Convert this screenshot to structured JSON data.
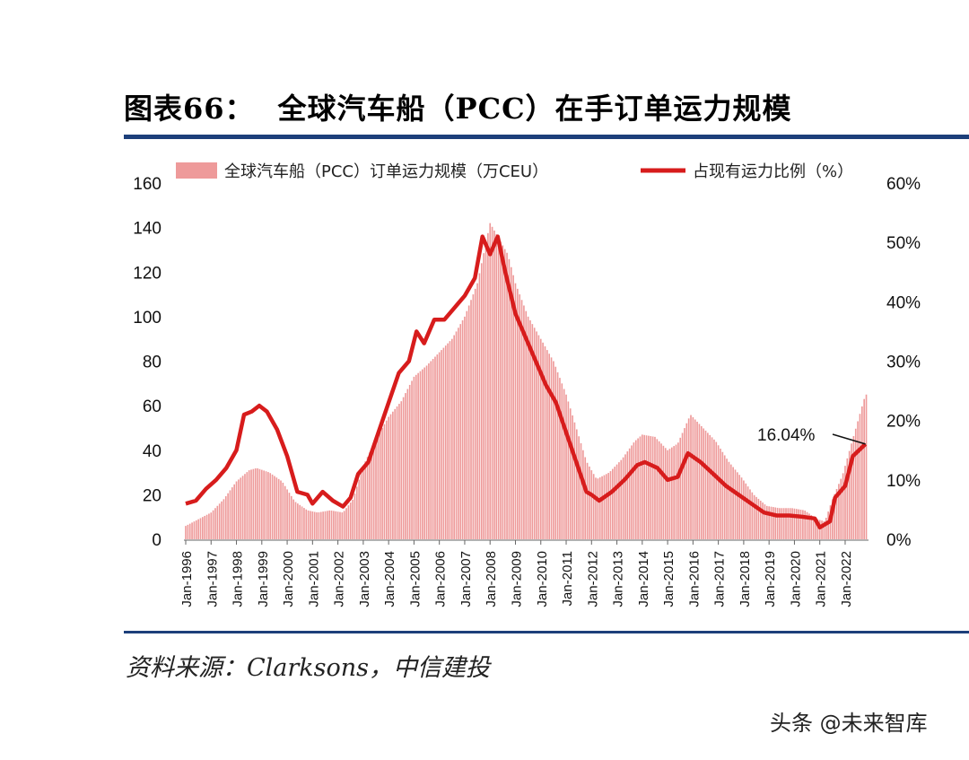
{
  "header": {
    "figure_label": "图表66：",
    "title": "全球汽车船（PCC）在手订单运力规模"
  },
  "footer": {
    "source": "资料来源：Clarksons，中信建投",
    "watermark": "头条 @未来智库"
  },
  "colors": {
    "bar": "#ee9a9a",
    "line": "#d71c1c",
    "rule": "#1c3f7a"
  },
  "chart_data": {
    "type": "bar+line",
    "title": "全球汽车船（PCC）在手订单运力规模",
    "categories": [
      "Jan-1996",
      "Jan-1997",
      "Jan-1998",
      "Jan-1999",
      "Jan-2000",
      "Jan-2001",
      "Jan-2002",
      "Jan-2003",
      "Jan-2004",
      "Jan-2005",
      "Jan-2006",
      "Jan-2007",
      "Jan-2008",
      "Jan-2009",
      "Jan-2010",
      "Jan-2011",
      "Jan-2012",
      "Jan-2013",
      "Jan-2014",
      "Jan-2015",
      "Jan-2016",
      "Jan-2017",
      "Jan-2018",
      "Jan-2019",
      "Jan-2020",
      "Jan-2021",
      "Jan-2022"
    ],
    "y_left": {
      "min": 0,
      "max": 160,
      "ticks": [
        "0",
        "20",
        "40",
        "60",
        "80",
        "100",
        "120",
        "140",
        "160"
      ]
    },
    "y_right": {
      "min": 0,
      "max": 60,
      "ticks": [
        "0%",
        "10%",
        "20%",
        "30%",
        "40%",
        "50%",
        "60%"
      ]
    },
    "legend": {
      "placement": "top"
    },
    "series": [
      {
        "name": "全球汽车船（PCC）订单运力规模（万CEU）",
        "type": "bar",
        "axis": "left",
        "anchors": [
          [
            1996.0,
            6
          ],
          [
            1996.5,
            9
          ],
          [
            1997.0,
            12
          ],
          [
            1997.5,
            18
          ],
          [
            1998.0,
            26
          ],
          [
            1998.5,
            31
          ],
          [
            1998.8,
            32
          ],
          [
            1999.3,
            30
          ],
          [
            1999.8,
            26
          ],
          [
            2000.3,
            17
          ],
          [
            2000.8,
            13
          ],
          [
            2001.2,
            12
          ],
          [
            2001.7,
            13
          ],
          [
            2002.2,
            12
          ],
          [
            2002.6,
            18
          ],
          [
            2003.0,
            33
          ],
          [
            2003.5,
            45
          ],
          [
            2004.0,
            55
          ],
          [
            2004.5,
            62
          ],
          [
            2005.0,
            73
          ],
          [
            2005.5,
            78
          ],
          [
            2006.0,
            84
          ],
          [
            2006.5,
            90
          ],
          [
            2007.0,
            100
          ],
          [
            2007.5,
            115
          ],
          [
            2008.0,
            142
          ],
          [
            2008.3,
            136
          ],
          [
            2008.7,
            128
          ],
          [
            2009.0,
            115
          ],
          [
            2009.5,
            100
          ],
          [
            2010.0,
            90
          ],
          [
            2010.5,
            80
          ],
          [
            2011.0,
            65
          ],
          [
            2011.4,
            50
          ],
          [
            2011.8,
            35
          ],
          [
            2012.2,
            27
          ],
          [
            2012.7,
            30
          ],
          [
            2013.2,
            36
          ],
          [
            2013.7,
            44
          ],
          [
            2014.0,
            47
          ],
          [
            2014.5,
            46
          ],
          [
            2015.0,
            40
          ],
          [
            2015.4,
            43
          ],
          [
            2015.9,
            56
          ],
          [
            2016.4,
            50
          ],
          [
            2016.9,
            44
          ],
          [
            2017.4,
            35
          ],
          [
            2017.9,
            28
          ],
          [
            2018.4,
            20
          ],
          [
            2018.9,
            15
          ],
          [
            2019.4,
            14
          ],
          [
            2019.9,
            14
          ],
          [
            2020.4,
            13
          ],
          [
            2020.9,
            9
          ],
          [
            2021.2,
            8
          ],
          [
            2021.5,
            18
          ],
          [
            2021.9,
            29
          ],
          [
            2022.3,
            45
          ],
          [
            2022.8,
            65
          ]
        ]
      },
      {
        "name": "占现有运力比例（%）",
        "type": "line",
        "axis": "right",
        "points": [
          [
            1996.0,
            6
          ],
          [
            1996.4,
            6.5
          ],
          [
            1996.8,
            8.5
          ],
          [
            1997.2,
            10
          ],
          [
            1997.6,
            12
          ],
          [
            1998.0,
            15
          ],
          [
            1998.3,
            21
          ],
          [
            1998.6,
            21.5
          ],
          [
            1998.9,
            22.5
          ],
          [
            1999.2,
            21.5
          ],
          [
            1999.6,
            18.5
          ],
          [
            2000.0,
            14
          ],
          [
            2000.4,
            8
          ],
          [
            2000.8,
            7.5
          ],
          [
            2001.0,
            6
          ],
          [
            2001.4,
            8
          ],
          [
            2001.8,
            6.5
          ],
          [
            2002.2,
            5.5
          ],
          [
            2002.5,
            7
          ],
          [
            2002.8,
            11
          ],
          [
            2003.2,
            13
          ],
          [
            2003.6,
            18
          ],
          [
            2004.0,
            23
          ],
          [
            2004.4,
            28
          ],
          [
            2004.8,
            30
          ],
          [
            2005.1,
            35
          ],
          [
            2005.4,
            33
          ],
          [
            2005.8,
            37
          ],
          [
            2006.2,
            37
          ],
          [
            2006.6,
            39
          ],
          [
            2007.0,
            41
          ],
          [
            2007.4,
            44
          ],
          [
            2007.7,
            51
          ],
          [
            2008.0,
            48
          ],
          [
            2008.3,
            51
          ],
          [
            2008.6,
            45
          ],
          [
            2009.0,
            38
          ],
          [
            2009.4,
            34
          ],
          [
            2009.8,
            30
          ],
          [
            2010.2,
            26
          ],
          [
            2010.6,
            23
          ],
          [
            2011.0,
            18
          ],
          [
            2011.4,
            13
          ],
          [
            2011.8,
            8
          ],
          [
            2012.0,
            7.5
          ],
          [
            2012.3,
            6.5
          ],
          [
            2012.8,
            8
          ],
          [
            2013.3,
            10
          ],
          [
            2013.8,
            12.5
          ],
          [
            2014.1,
            13
          ],
          [
            2014.6,
            12
          ],
          [
            2015.0,
            10
          ],
          [
            2015.4,
            10.5
          ],
          [
            2015.8,
            14.5
          ],
          [
            2016.3,
            13
          ],
          [
            2016.8,
            11
          ],
          [
            2017.3,
            9
          ],
          [
            2017.8,
            7.5
          ],
          [
            2018.3,
            6
          ],
          [
            2018.8,
            4.5
          ],
          [
            2019.3,
            4
          ],
          [
            2019.8,
            4
          ],
          [
            2020.3,
            3.8
          ],
          [
            2020.8,
            3.5
          ],
          [
            2021.0,
            2
          ],
          [
            2021.4,
            3
          ],
          [
            2021.6,
            7
          ],
          [
            2022.0,
            9
          ],
          [
            2022.3,
            14
          ],
          [
            2022.8,
            16.04
          ]
        ]
      }
    ],
    "annotation": {
      "text": "16.04%",
      "x": 2022.8,
      "y": 16.04
    }
  }
}
